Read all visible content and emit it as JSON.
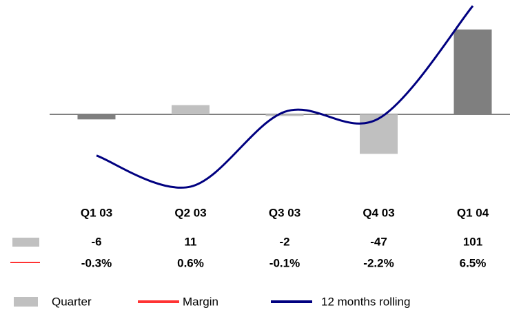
{
  "chart_data": {
    "type": "bar",
    "categories": [
      "Q1 03",
      "Q2 03",
      "Q3 03",
      "Q4 03",
      "Q1 04"
    ],
    "series": [
      {
        "name": "Quarter",
        "color": "#c0c0c0",
        "colors": [
          "#7f7f7f",
          "#c0c0c0",
          "#c0c0c0",
          "#c0c0c0",
          "#7f7f7f"
        ],
        "values": [
          -6,
          11,
          -2,
          -47,
          101
        ]
      },
      {
        "name": "Margin",
        "color": "#ff3333",
        "values": [
          -0.3,
          0.6,
          -0.1,
          -2.2,
          6.5
        ],
        "value_labels": [
          "-0.3%",
          "0.6%",
          "-0.1%",
          "-2.2%",
          "6.5%"
        ]
      },
      {
        "name": "12 months rolling",
        "color": "#000080",
        "type": "line",
        "values": [
          -49,
          -86,
          3,
          -5,
          129
        ]
      }
    ]
  }
}
